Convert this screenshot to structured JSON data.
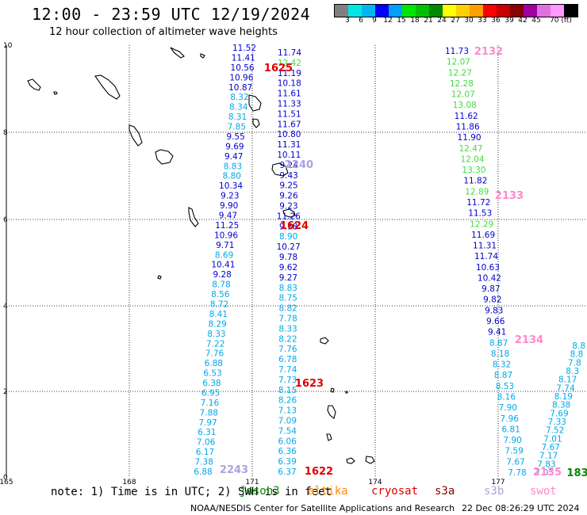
{
  "header": {
    "title": "12:00 - 23:59 UTC 12/19/2024",
    "subtitle": "12 hour collection of altimeter wave heights"
  },
  "colorbar": {
    "colors": [
      "#808080",
      "#00e5e5",
      "#00b8f0",
      "#0000ff",
      "#00a0ff",
      "#00e600",
      "#00c000",
      "#008a00",
      "#ffff00",
      "#ffd000",
      "#ffa000",
      "#ff0000",
      "#c80000",
      "#8a0000",
      "#a000a0",
      "#e070e0",
      "#ff99ff",
      "#000000"
    ],
    "labels": [
      "3",
      "6",
      "9",
      "12",
      "15",
      "18",
      "21",
      "24",
      "27",
      "30",
      "33",
      "36",
      "39",
      "42",
      "45",
      "70 (ft)"
    ]
  },
  "axes": {
    "y_ticks": [
      "10",
      "8",
      "6",
      "4",
      "2",
      "0"
    ],
    "x_ticks": [
      "165",
      "168",
      "171",
      "174",
      "177"
    ]
  },
  "passes": [
    {
      "id": "1625",
      "color": "#e00000"
    },
    {
      "id": "2132",
      "color": "#ff88cc"
    },
    {
      "id": "2240",
      "color": "#b0a0e0"
    },
    {
      "id": "2133",
      "color": "#ff88cc"
    },
    {
      "id": "1624",
      "color": "#e00000"
    },
    {
      "id": "2134",
      "color": "#ff88cc"
    },
    {
      "id": "1623",
      "color": "#e00000"
    },
    {
      "id": "1622",
      "color": "#e00000"
    },
    {
      "id": "2243",
      "color": "#b0a0e0"
    },
    {
      "id": "2135",
      "color": "#ff88cc"
    },
    {
      "id": "183",
      "color": "#008a00"
    }
  ],
  "track_a": [
    "11.52",
    "11.41",
    "10.56",
    "10.96",
    "10.87",
    "8.32",
    "8.34",
    "8.31",
    "7.85",
    "9.55",
    "9.69",
    "9.47",
    "8.83",
    "8.80",
    "10.34",
    "9.23",
    "9.90",
    "9.47",
    "11.25",
    "10.96",
    "9.71",
    "8.69",
    "10.41",
    "9.28",
    "8.78",
    "8.56",
    "8.72",
    "8.41",
    "8.29",
    "8.33",
    "7.22",
    "7.76",
    "6.88",
    "6.53",
    "6.38",
    "6.95",
    "7.16",
    "7.88",
    "7.97",
    "6.31",
    "7.06",
    "6.17",
    "7.38",
    "6.88"
  ],
  "track_b": [
    "11.74",
    "12.42",
    "11.19",
    "10.18",
    "11.61",
    "11.33",
    "11.51",
    "11.67",
    "10.80",
    "11.31",
    "10.11",
    "9.24",
    "9.43",
    "9.25",
    "9.26",
    "9.23",
    "11.26",
    "9.38",
    "8.90",
    "10.27",
    "9.78",
    "9.62",
    "9.27",
    "8.83",
    "8.75",
    "8.82",
    "7.78",
    "8.33",
    "8.22",
    "7.76",
    "6.78",
    "7.74",
    "7.73",
    "8.15",
    "8.26",
    "7.13",
    "7.09",
    "7.54",
    "6.06",
    "6.36",
    "6.39",
    "6.37"
  ],
  "track_c": [
    "11.73",
    "12.07",
    "12.27",
    "12.28",
    "12.07",
    "13.08",
    "11.62",
    "11.86",
    "11.90",
    "12.47",
    "12.04",
    "13.30",
    "11.82",
    "12.89",
    "11.72",
    "11.53",
    "12.29",
    "11.69",
    "11.31",
    "11.74",
    "10.63",
    "10.42",
    "9.87",
    "9.82",
    "9.83",
    "9.66",
    "9.41",
    "8.87",
    "8.18",
    "8.32",
    "8.87",
    "8.53",
    "8.16",
    "7.90",
    "7.96",
    "6.81",
    "7.90",
    "7.59",
    "7.67",
    "7.78"
  ],
  "track_d": [
    "8.8",
    "8.8",
    "7.8",
    "8.3",
    "8.17",
    "7.74",
    "8.19",
    "8.38",
    "7.69",
    "7.33",
    "7.52",
    "7.01",
    "7.67",
    "7.17",
    "7.83",
    "7.05"
  ],
  "note": "note: 1) Time is in UTC; 2) SWH is in feet",
  "legend": [
    {
      "name": "jason3",
      "color": "#008a00"
    },
    {
      "name": "altika",
      "color": "#ff8c00"
    },
    {
      "name": "cryosat",
      "color": "#e00000"
    },
    {
      "name": "s3a",
      "color": "#8a0000"
    },
    {
      "name": "s3b",
      "color": "#b0a0e0"
    },
    {
      "name": "swot",
      "color": "#ff88cc"
    }
  ],
  "footer": {
    "credit": "NOAA/NESDIS Center for Satellite Applications and Research",
    "timestamp": "22 Dec 08:26:29 UTC 2024"
  }
}
